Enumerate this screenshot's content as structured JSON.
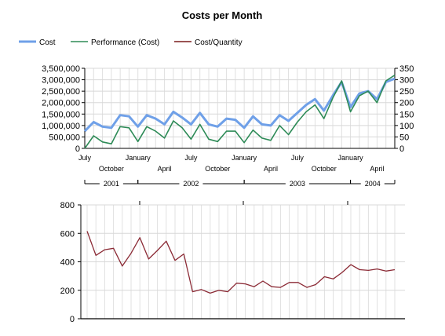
{
  "chart_data": [
    {
      "type": "line",
      "title": "Costs per Month",
      "legend": {
        "placement": "top-left"
      },
      "series": [
        {
          "name": "Cost",
          "axis": "left",
          "color": "#6fa0e8",
          "values": [
            750000,
            1150000,
            950000,
            900000,
            1450000,
            1400000,
            950000,
            1450000,
            1300000,
            1050000,
            1600000,
            1350000,
            1050000,
            1550000,
            1050000,
            950000,
            1300000,
            1250000,
            900000,
            1400000,
            1050000,
            1000000,
            1450000,
            1200000,
            1550000,
            1900000,
            2150000,
            1650000,
            2300000,
            2900000,
            1800000,
            2400000,
            2500000,
            2150000,
            2900000,
            3050000
          ]
        },
        {
          "name": "Performance (Cost)",
          "axis": "right",
          "color": "#2e8b57",
          "values": [
            0,
            55,
            28,
            20,
            95,
            90,
            30,
            95,
            75,
            45,
            120,
            90,
            40,
            105,
            40,
            30,
            75,
            75,
            25,
            80,
            45,
            35,
            100,
            60,
            115,
            160,
            190,
            130,
            220,
            295,
            160,
            230,
            250,
            200,
            295,
            320
          ]
        },
        {
          "name": "Cost/Quantity",
          "axis": "none",
          "color": "#7a1c1c",
          "values": []
        }
      ],
      "y_left": {
        "min": 0,
        "max": 3500000,
        "ticks": [
          "0",
          "500,000",
          "1,000,000",
          "1,500,000",
          "2,000,000",
          "2,500,000",
          "3,000,000",
          "3,500,000"
        ]
      },
      "y_right": {
        "min": 0,
        "max": 350,
        "ticks": [
          "0",
          "50",
          "100",
          "150",
          "200",
          "250",
          "300",
          "350"
        ]
      },
      "x_month_labels": [
        {
          "i": 0,
          "text": "July",
          "row": 1
        },
        {
          "i": 3,
          "text": "October",
          "row": 2
        },
        {
          "i": 6,
          "text": "January",
          "row": 1
        },
        {
          "i": 9,
          "text": "April",
          "row": 2
        },
        {
          "i": 12,
          "text": "July",
          "row": 1
        },
        {
          "i": 15,
          "text": "October",
          "row": 2
        },
        {
          "i": 18,
          "text": "January",
          "row": 1
        },
        {
          "i": 21,
          "text": "April",
          "row": 2
        },
        {
          "i": 24,
          "text": "July",
          "row": 1
        },
        {
          "i": 27,
          "text": "October",
          "row": 2
        },
        {
          "i": 30,
          "text": "January",
          "row": 1
        },
        {
          "i": 33,
          "text": "April",
          "row": 2
        }
      ],
      "x_year_groups": [
        {
          "from": 0,
          "to": 6,
          "text": "2001"
        },
        {
          "from": 6,
          "to": 18,
          "text": "2002"
        },
        {
          "from": 18,
          "to": 30,
          "text": "2003"
        },
        {
          "from": 30,
          "to": 35,
          "text": "2004"
        }
      ],
      "grid": true
    },
    {
      "type": "line",
      "series": [
        {
          "name": "Cost/Quantity",
          "color": "#8b2a35",
          "values": [
            615,
            445,
            485,
            495,
            370,
            460,
            570,
            420,
            480,
            545,
            410,
            455,
            190,
            205,
            180,
            200,
            190,
            250,
            245,
            225,
            265,
            225,
            220,
            255,
            255,
            220,
            240,
            295,
            280,
            325,
            380,
            345,
            340,
            350,
            335,
            345
          ]
        }
      ],
      "y": {
        "min": 0,
        "max": 800,
        "ticks": [
          "0",
          "200",
          "400",
          "600",
          "800"
        ]
      },
      "grid": true
    }
  ]
}
